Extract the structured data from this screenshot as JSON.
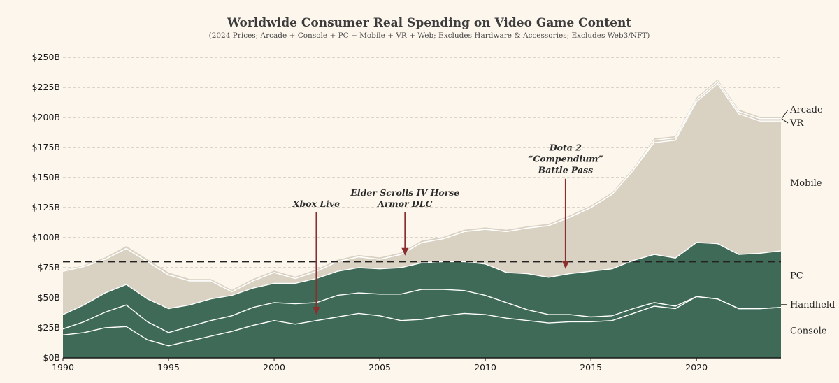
{
  "chart_data": {
    "type": "area",
    "title": "Worldwide Consumer Real Spending on Video Game Content",
    "subtitle": "(2024 Prices; Arcade + Console + PC + Mobile + VR + Web; Excludes Hardware & Accessories; Excludes Web3/NFT)",
    "xlabel": "",
    "ylabel": "",
    "xlim": [
      1990,
      2024
    ],
    "ylim": [
      0,
      250
    ],
    "stacked": true,
    "grid": true,
    "x": [
      1990,
      1991,
      1992,
      1993,
      1994,
      1995,
      1996,
      1997,
      1998,
      1999,
      2000,
      2001,
      2002,
      2003,
      2004,
      2005,
      2006,
      2007,
      2008,
      2009,
      2010,
      2011,
      2012,
      2013,
      2014,
      2015,
      2016,
      2017,
      2018,
      2019,
      2020,
      2021,
      2022,
      2023,
      2024
    ],
    "x_ticks": [
      {
        "value": 1990,
        "label": "1990"
      },
      {
        "value": 1995,
        "label": "1995"
      },
      {
        "value": 2000,
        "label": "2000"
      },
      {
        "value": 2005,
        "label": "2005"
      },
      {
        "value": 2010,
        "label": "2010"
      },
      {
        "value": 2015,
        "label": "2015"
      },
      {
        "value": 2020,
        "label": "2020"
      }
    ],
    "y_ticks": [
      {
        "value": 0,
        "label": "$0B"
      },
      {
        "value": 25,
        "label": "$25B"
      },
      {
        "value": 50,
        "label": "$50B"
      },
      {
        "value": 75,
        "label": "$75B"
      },
      {
        "value": 100,
        "label": "$100B"
      },
      {
        "value": 125,
        "label": "$125B"
      },
      {
        "value": 150,
        "label": "$150B"
      },
      {
        "value": 175,
        "label": "$175B"
      },
      {
        "value": 200,
        "label": "$200B"
      },
      {
        "value": 225,
        "label": "$225B"
      },
      {
        "value": 250,
        "label": "$250B"
      }
    ],
    "series": [
      {
        "name": "Console",
        "color": "#3f6a57",
        "values": [
          19,
          21,
          25,
          26,
          15,
          10,
          14,
          18,
          22,
          27,
          31,
          28,
          31,
          34,
          37,
          35,
          31,
          32,
          35,
          37,
          36,
          33,
          31,
          29,
          30,
          30,
          31,
          37,
          43,
          41,
          51,
          49,
          41,
          41,
          42
        ]
      },
      {
        "name": "Handheld",
        "color": "#3f6a57",
        "values": [
          5,
          9,
          13,
          18,
          15,
          11,
          12,
          13,
          13,
          15,
          15,
          17,
          15,
          18,
          17,
          18,
          22,
          25,
          22,
          19,
          16,
          13,
          9,
          7,
          6,
          4,
          4,
          4,
          3,
          2,
          0,
          0,
          0,
          0,
          0
        ]
      },
      {
        "name": "PC",
        "color": "#3f6a57",
        "values": [
          12,
          14,
          16,
          17,
          19,
          20,
          18,
          18,
          17,
          16,
          16,
          17,
          20,
          20,
          21,
          21,
          22,
          22,
          23,
          24,
          26,
          25,
          30,
          31,
          34,
          38,
          39,
          40,
          40,
          40,
          45,
          46,
          45,
          46,
          47
        ]
      },
      {
        "name": "Mobile",
        "color": "#d9d1c1",
        "values": [
          36,
          32,
          28,
          30,
          31,
          28,
          20,
          15,
          3,
          6,
          9,
          4,
          6,
          8,
          9,
          8,
          11,
          17,
          19,
          25,
          29,
          34,
          38,
          43,
          47,
          53,
          62,
          75,
          93,
          98,
          117,
          133,
          117,
          110,
          108
        ]
      },
      {
        "name": "VR",
        "color": "#d9d1c1",
        "values": [
          0,
          0,
          0,
          0,
          0,
          0,
          0,
          0,
          0,
          0,
          0,
          0,
          0,
          0,
          0,
          0,
          0,
          0,
          0,
          0,
          0,
          0,
          0,
          0,
          0,
          0,
          0,
          0,
          2,
          2,
          2,
          2,
          2,
          2,
          2
        ]
      },
      {
        "name": "Arcade",
        "color": "#d9d1c1",
        "values": [
          0.5,
          1,
          1.5,
          2,
          2,
          2,
          1.5,
          1.5,
          1.5,
          1.5,
          1.5,
          1.5,
          1.5,
          1.5,
          1.5,
          1.5,
          1.5,
          1.5,
          1.5,
          1.5,
          1.5,
          1.5,
          1.5,
          1.5,
          1.5,
          1.5,
          1.5,
          1.5,
          1.5,
          1.5,
          1.5,
          1.5,
          1.5,
          1.5,
          1.5
        ]
      }
    ],
    "reference_line": {
      "value": 80,
      "style": "dashed",
      "color": "#222222"
    },
    "annotations": [
      {
        "lines": [
          "Xbox Live"
        ],
        "x": 2002,
        "y_from": 121,
        "y_to": 36,
        "color": "#8b2e2e"
      },
      {
        "lines": [
          "Elder Scrolls IV Horse",
          "Armor DLC"
        ],
        "x": 2006.2,
        "y_from": 121,
        "y_to": 85,
        "color": "#8b2e2e"
      },
      {
        "lines": [
          "Dota 2",
          "“Compendium”",
          "Battle Pass"
        ],
        "x": 2013.8,
        "y_from": 149,
        "y_to": 74,
        "color": "#8b2e2e"
      }
    ],
    "series_labels": [
      {
        "text": "Arcade",
        "y": 204
      },
      {
        "text": "VR",
        "y": 193
      },
      {
        "text": "Mobile",
        "y": 143
      },
      {
        "text": "PC",
        "y": 66
      },
      {
        "text": "Handheld",
        "y": 42
      },
      {
        "text": "Console",
        "y": 20
      }
    ]
  }
}
